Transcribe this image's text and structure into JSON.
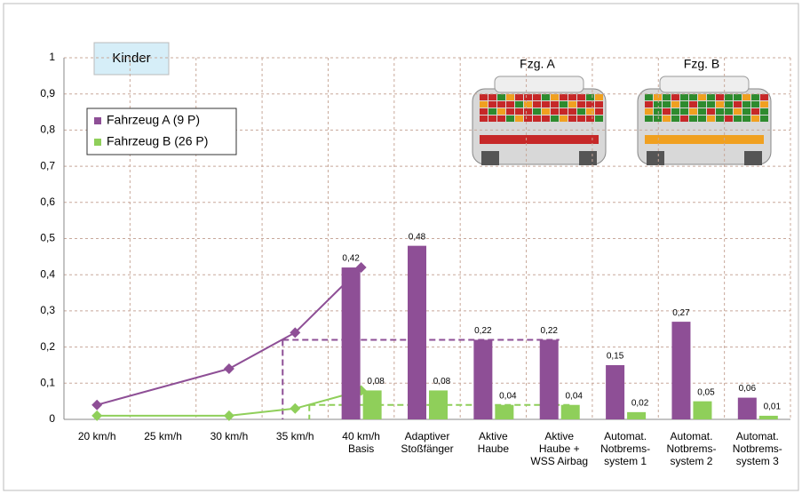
{
  "chart_data": {
    "type": "bar-line",
    "annotation": "Kinder",
    "image_labels": [
      "Fzg. A",
      "Fzg. B"
    ],
    "categories": [
      [
        "20 km/h"
      ],
      [
        "25 km/h"
      ],
      [
        "30 km/h"
      ],
      [
        "35 km/h"
      ],
      [
        "40 km/h",
        "Basis"
      ],
      [
        "Adaptiver",
        "Stoßfänger"
      ],
      [
        "Aktive",
        "Haube"
      ],
      [
        "Aktive",
        "Haube +",
        "WSS Airbag"
      ],
      [
        "Automat.",
        "Notbrems-",
        "system 1"
      ],
      [
        "Automat.",
        "Notbrems-",
        "system 2"
      ],
      [
        "Automat.",
        "Notbrems-",
        "system 3"
      ]
    ],
    "series": [
      {
        "name": "Fahrzeug A (9 P)",
        "color": "#8e4f96",
        "values": [
          null,
          null,
          null,
          null,
          0.42,
          0.48,
          0.22,
          0.22,
          0.15,
          0.27,
          0.06
        ],
        "value_labels": [
          null,
          null,
          null,
          null,
          "0,42",
          "0,48",
          "0,22",
          "0,22",
          "0,15",
          "0,27",
          "0,06"
        ],
        "line_x": [
          20,
          30,
          35,
          40
        ],
        "line_values": [
          0.04,
          0.14,
          0.24,
          0.42
        ]
      },
      {
        "name": "Fahrzeug B (26 P)",
        "color": "#8fcf5a",
        "values": [
          null,
          null,
          null,
          null,
          0.08,
          0.08,
          0.04,
          0.04,
          0.02,
          0.05,
          0.01
        ],
        "value_labels": [
          null,
          null,
          null,
          null,
          "0,08",
          "0,08",
          "0,04",
          "0,04",
          "0,02",
          "0,05",
          "0,01"
        ],
        "line_x": [
          20,
          30,
          35,
          40
        ],
        "line_values": [
          0.01,
          0.01,
          0.03,
          0.08
        ]
      }
    ],
    "reference_lines": [
      {
        "value": 0.22,
        "color": "#8e4f96"
      },
      {
        "value": 0.04,
        "color": "#8fcf5a"
      }
    ],
    "ylim": [
      0,
      1
    ],
    "yticks": [
      0,
      {
        "value": 0.1,
        "label": "0,1"
      },
      {
        "value": 0.2,
        "label": "0,2"
      },
      {
        "value": 0.3,
        "label": "0,3"
      },
      {
        "value": 0.4,
        "label": "0,4"
      },
      {
        "value": 0.5,
        "label": "0,5"
      },
      {
        "value": 0.6,
        "label": "0,6"
      },
      {
        "value": 0.7,
        "label": "0,7"
      },
      {
        "value": 0.8,
        "label": "0,8"
      },
      {
        "value": 0.9,
        "label": "0,9"
      },
      1
    ],
    "grid": true,
    "legend": "upper-left"
  }
}
